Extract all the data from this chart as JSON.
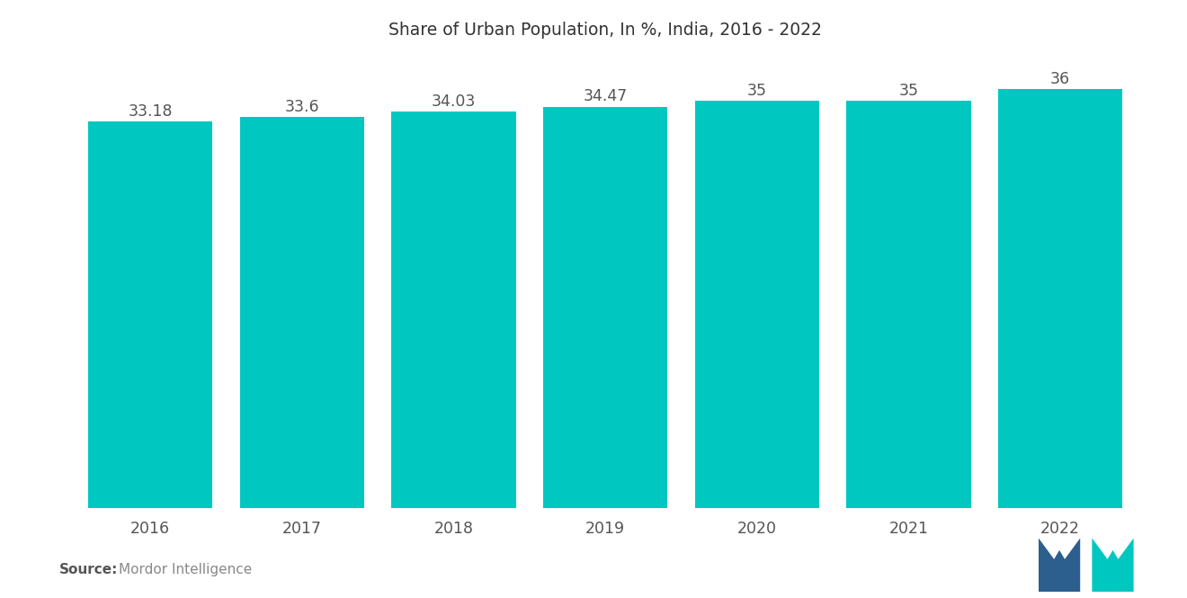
{
  "title": "Share of Urban Population, In %, India, 2016 - 2022",
  "categories": [
    "2016",
    "2017",
    "2018",
    "2019",
    "2020",
    "2021",
    "2022"
  ],
  "values": [
    33.18,
    33.6,
    34.03,
    34.47,
    35,
    35,
    36
  ],
  "bar_color": "#00C8C0",
  "background_color": "#ffffff",
  "ylim": [
    0,
    38.5
  ],
  "bar_width": 0.82,
  "label_fontsize": 12.5,
  "title_fontsize": 13.5,
  "tick_fontsize": 12.5,
  "source_bold": "Source:",
  "source_text": "Mordor Intelligence",
  "source_fontsize": 11,
  "value_labels": [
    "33.18",
    "33.6",
    "34.03",
    "34.47",
    "35",
    "35",
    "36"
  ],
  "logo_left_color": "#2d5f8e",
  "logo_right_color": "#00C8C0"
}
